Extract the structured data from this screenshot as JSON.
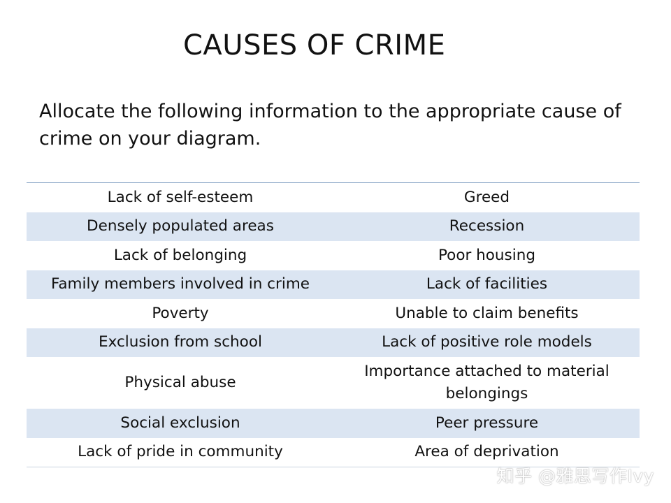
{
  "title": "CAUSES OF CRIME",
  "instruction": "Allocate the following information to the appropriate cause of crime on your diagram.",
  "table": {
    "shade_color": "#dbe5f2",
    "rows": [
      {
        "left": "Lack of self-esteem",
        "right": "Greed",
        "shaded": false
      },
      {
        "left": "Densely populated areas",
        "right": "Recession",
        "shaded": true
      },
      {
        "left": "Lack of belonging",
        "right": "Poor housing",
        "shaded": false
      },
      {
        "left": "Family members involved in crime",
        "right": "Lack of facilities",
        "shaded": true
      },
      {
        "left": "Poverty",
        "right": "Unable to claim benefits",
        "shaded": false
      },
      {
        "left": "Exclusion from school",
        "right": "Lack of positive role models",
        "shaded": true
      },
      {
        "left": "Physical abuse",
        "right": "Importance attached to material belongings",
        "shaded": false,
        "tall": true
      },
      {
        "left": "Social exclusion",
        "right": "Peer pressure",
        "shaded": true
      },
      {
        "left": "Lack of pride in community",
        "right": "Area of deprivation",
        "shaded": false
      }
    ]
  },
  "watermark": "知乎 @雅思写作Ivy"
}
